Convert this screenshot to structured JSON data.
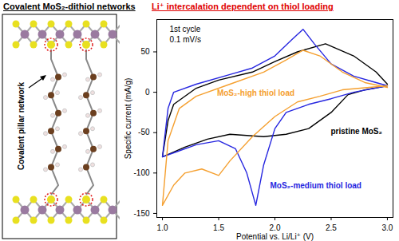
{
  "chart_data": {
    "type": "line",
    "title": "Li⁺ intercalation dependent on thiol loading",
    "x_label": "Potential vs. Li/Li⁺ (V)",
    "y_label": "Specific current (mA/g)",
    "annotations": [
      "1st cycle",
      "0.1 mV/s"
    ],
    "xlim": [
      0.95,
      3.05
    ],
    "xticks": [
      {
        "value": 1,
        "label": "1.0"
      },
      {
        "value": 1.5,
        "label": "1.5"
      },
      {
        "value": 2,
        "label": "2.0"
      },
      {
        "value": 2.5,
        "label": "2.5"
      },
      {
        "value": 3,
        "label": "3.0"
      }
    ],
    "ylim": [
      -155,
      90
    ],
    "yticks": [
      -150,
      -100,
      -50,
      0,
      50
    ],
    "grid": false,
    "series": [
      {
        "name": "pristine MoS₂",
        "color": "#000000",
        "x": [
          3.0,
          2.8,
          2.65,
          2.5,
          2.3,
          2.1,
          1.9,
          1.6,
          1.4,
          1.2,
          1.0,
          1.05,
          1.1,
          1.3,
          1.5,
          1.8,
          2.0,
          2.2,
          2.45,
          2.7,
          2.9,
          3.0
        ],
        "values": [
          8,
          3,
          -3,
          -25,
          -45,
          -52,
          -55,
          -52,
          -58,
          -68,
          -80,
          -35,
          -15,
          5,
          15,
          25,
          38,
          50,
          60,
          45,
          25,
          10
        ]
      },
      {
        "name": "MoS₂-medium thiol load",
        "color": "#2626e0",
        "x": [
          3.0,
          2.7,
          2.5,
          2.3,
          2.1,
          2.0,
          1.9,
          1.83,
          1.75,
          1.65,
          1.5,
          1.3,
          1.1,
          1.0,
          1.05,
          1.1,
          1.3,
          1.6,
          1.8,
          2.0,
          2.15,
          2.25,
          2.35,
          2.5,
          2.7,
          2.9,
          3.0
        ],
        "values": [
          8,
          0,
          -8,
          -15,
          -25,
          -45,
          -90,
          -140,
          -100,
          -70,
          -60,
          -65,
          -75,
          -80,
          -20,
          0,
          10,
          22,
          30,
          45,
          65,
          78,
          60,
          35,
          20,
          12,
          8
        ]
      },
      {
        "name": "MoS₂-high thiol load",
        "color": "#f5a030",
        "x": [
          3.0,
          2.6,
          2.4,
          2.2,
          2.0,
          1.8,
          1.6,
          1.5,
          1.35,
          1.2,
          1.1,
          1.0,
          1.05,
          1.15,
          1.3,
          1.6,
          1.9,
          2.1,
          2.25,
          2.4,
          2.6,
          2.8,
          3.0
        ],
        "values": [
          8,
          3,
          -5,
          -12,
          -30,
          -55,
          -85,
          -103,
          -95,
          -100,
          -115,
          -140,
          -60,
          -20,
          -5,
          10,
          25,
          40,
          52,
          45,
          25,
          12,
          6
        ]
      }
    ]
  },
  "diagram": {
    "title": "Covalent MoS₂-dithiol networks",
    "label": "Covalent pillar network"
  }
}
